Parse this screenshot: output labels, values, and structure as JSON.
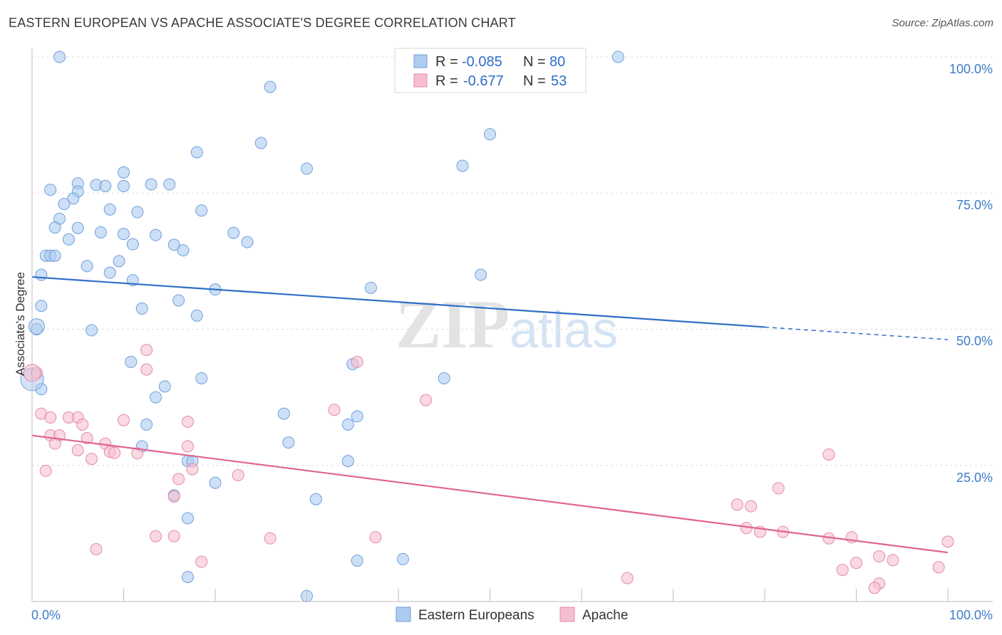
{
  "header": {
    "title": "EASTERN EUROPEAN VS APACHE ASSOCIATE'S DEGREE CORRELATION CHART",
    "source": "Source: ZipAtlas.com"
  },
  "watermark": {
    "part1": "ZIP",
    "part2": "atlas"
  },
  "legend_top": {
    "rows": [
      {
        "r_label": "R =",
        "r_value": "-0.085",
        "n_label": "N =",
        "n_value": "80",
        "color": "#aecbf0"
      },
      {
        "r_label": "R =",
        "r_value": "-0.677",
        "n_label": "N =",
        "n_value": "53",
        "color": "#f6bfd0"
      }
    ]
  },
  "legend_bottom": {
    "items": [
      "Eastern Europeans",
      "Apache"
    ]
  },
  "chart_data": {
    "type": "scatter",
    "ylabel": "Associate's Degree",
    "xlim": [
      0,
      100
    ],
    "ylim": [
      0,
      100
    ],
    "x_tick_labels": [
      "0.0%",
      "100.0%"
    ],
    "y_tick_labels": [
      "25.0%",
      "50.0%",
      "75.0%",
      "100.0%"
    ],
    "y_ticks": [
      25,
      50,
      75,
      100
    ],
    "grid": true,
    "series": [
      {
        "name": "Eastern Europeans",
        "color": "#6f9fdc",
        "fill": "#aecbf0",
        "trend": {
          "x0": 0,
          "y0": 59.6,
          "x1": 80,
          "y1": 50.4,
          "dash_to": 100,
          "dash_y": 48.1
        },
        "points": [
          [
            3,
            100
          ],
          [
            49,
            100
          ],
          [
            64,
            100
          ],
          [
            26,
            94.5
          ],
          [
            50,
            85.8
          ],
          [
            25,
            84.2
          ],
          [
            18,
            82.5
          ],
          [
            30,
            79.5
          ],
          [
            47,
            80
          ],
          [
            10,
            78.8
          ],
          [
            5,
            76.8
          ],
          [
            7,
            76.5
          ],
          [
            8,
            76.3
          ],
          [
            10,
            76.3
          ],
          [
            13,
            76.6
          ],
          [
            15,
            76.6
          ],
          [
            2,
            75.6
          ],
          [
            5,
            75.3
          ],
          [
            4.5,
            74
          ],
          [
            3.5,
            73
          ],
          [
            8.5,
            72
          ],
          [
            18.5,
            71.8
          ],
          [
            11.5,
            71.5
          ],
          [
            3,
            70.3
          ],
          [
            2.5,
            68.7
          ],
          [
            5,
            68.6
          ],
          [
            7.5,
            67.8
          ],
          [
            10,
            67.5
          ],
          [
            13.5,
            67.3
          ],
          [
            22,
            67.7
          ],
          [
            23.5,
            66
          ],
          [
            4,
            66.5
          ],
          [
            11,
            65.6
          ],
          [
            15.5,
            65.5
          ],
          [
            16.5,
            64.5
          ],
          [
            1.5,
            63.5
          ],
          [
            2,
            63.5
          ],
          [
            2.5,
            63.5
          ],
          [
            9.5,
            62.5
          ],
          [
            6,
            61.6
          ],
          [
            8.5,
            60.4
          ],
          [
            1,
            60
          ],
          [
            49,
            60
          ],
          [
            11,
            59
          ],
          [
            37,
            57.6
          ],
          [
            20,
            57.3
          ],
          [
            16,
            55.3
          ],
          [
            1,
            54.3
          ],
          [
            12,
            53.8
          ],
          [
            18,
            52.5
          ],
          [
            0.5,
            50
          ],
          [
            6.5,
            49.8
          ],
          [
            10.8,
            44
          ],
          [
            35,
            43.6
          ],
          [
            18.5,
            41
          ],
          [
            45,
            41
          ],
          [
            1,
            39
          ],
          [
            14.5,
            39.5
          ],
          [
            13.5,
            37.5
          ],
          [
            27.5,
            34.5
          ],
          [
            35.5,
            34
          ],
          [
            12.5,
            32.5
          ],
          [
            34.5,
            32.5
          ],
          [
            28,
            29.2
          ],
          [
            12,
            28.5
          ],
          [
            17,
            25.8
          ],
          [
            17.5,
            25.8
          ],
          [
            34.5,
            25.8
          ],
          [
            20,
            21.8
          ],
          [
            15.5,
            19.5
          ],
          [
            31,
            18.8
          ],
          [
            17,
            15.3
          ],
          [
            35.5,
            7.5
          ],
          [
            40.5,
            7.8
          ],
          [
            17,
            4.5
          ],
          [
            30,
            1
          ]
        ],
        "radius": 8,
        "big": [
          [
            0,
            40.8,
            16
          ],
          [
            0.5,
            50.5,
            11
          ]
        ]
      },
      {
        "name": "Apache",
        "color": "#e48aa7",
        "fill": "#f6bfd0",
        "trend": {
          "x0": 0,
          "y0": 30.5,
          "x1": 100,
          "y1": 9
        },
        "points": [
          [
            0.5,
            42
          ],
          [
            12.5,
            42.6
          ],
          [
            12.5,
            46.2
          ],
          [
            35.5,
            44
          ],
          [
            43,
            37
          ],
          [
            33,
            35.2
          ],
          [
            1,
            34.5
          ],
          [
            2,
            33.8
          ],
          [
            4,
            33.8
          ],
          [
            5,
            33.8
          ],
          [
            10,
            33.3
          ],
          [
            17,
            33
          ],
          [
            5.5,
            32.5
          ],
          [
            2,
            30.5
          ],
          [
            3,
            30.5
          ],
          [
            6,
            30
          ],
          [
            2.5,
            29
          ],
          [
            8,
            29
          ],
          [
            5,
            27.8
          ],
          [
            8.5,
            27.5
          ],
          [
            17,
            28.5
          ],
          [
            9,
            27.3
          ],
          [
            11.5,
            27.2
          ],
          [
            6.5,
            26.2
          ],
          [
            1.5,
            24
          ],
          [
            17.5,
            24.3
          ],
          [
            22.5,
            23.2
          ],
          [
            16,
            22.5
          ],
          [
            15.5,
            19.3
          ],
          [
            87,
            27
          ],
          [
            81.5,
            20.8
          ],
          [
            77,
            17.8
          ],
          [
            78.5,
            17.5
          ],
          [
            78,
            13.5
          ],
          [
            79.5,
            12.8
          ],
          [
            82,
            12.8
          ],
          [
            87,
            11.6
          ],
          [
            89.5,
            11.8
          ],
          [
            100,
            11
          ],
          [
            13.5,
            12
          ],
          [
            15.5,
            12
          ],
          [
            26,
            11.6
          ],
          [
            37.5,
            11.8
          ],
          [
            7,
            9.6
          ],
          [
            18.5,
            7.3
          ],
          [
            92.5,
            8.3
          ],
          [
            94,
            7.6
          ],
          [
            90,
            7.1
          ],
          [
            88.5,
            5.8
          ],
          [
            99,
            6.3
          ],
          [
            65,
            4.3
          ],
          [
            92.5,
            3.3
          ],
          [
            92,
            2.5
          ]
        ],
        "radius": 8,
        "big": [
          [
            0,
            42,
            12
          ]
        ]
      }
    ]
  }
}
